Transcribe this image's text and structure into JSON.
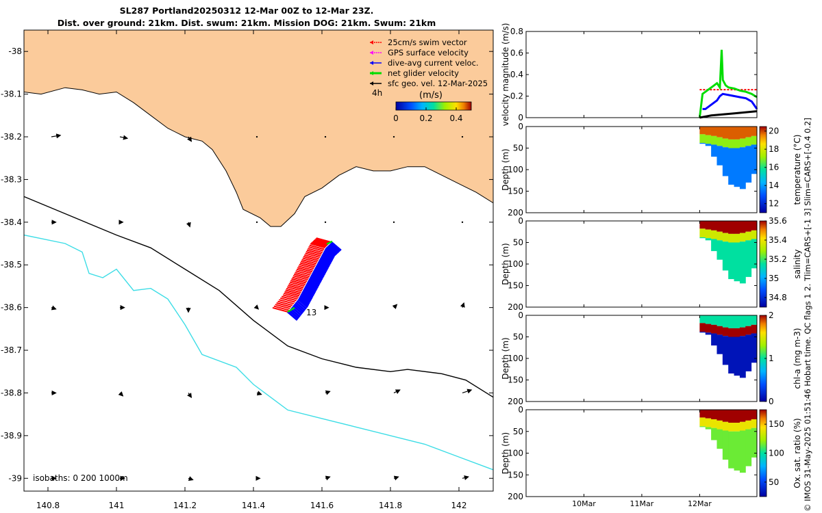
{
  "title_line1": "SL287 Portland20250312 12-Mar 00Z to 12-Mar 23Z.",
  "title_line2": "Dist. over ground: 21km. Dist. swum: 21km. Mission DOG: 21km. Swum: 21km",
  "side_note": "© IMOS 31-May-2025 01:51:46 Hobart time. QC flags 1  2. Tlim=CARS+[-1 3] Slim=CARS+[-0.4 0.2]",
  "colors": {
    "land": "#FBCB9B",
    "isobath_0": "#000000",
    "isobath_200": "#000000",
    "isobath_1000": "#3DDDE6",
    "swim": "#FF0000",
    "gps": "#FF00FF",
    "dive": "#0000FF",
    "net": "#00DD00",
    "geo": "#000000"
  },
  "chart_data": [
    {
      "type": "map",
      "xlim": [
        140.73,
        142.1
      ],
      "ylim": [
        -39.03,
        -37.95
      ],
      "xticks": [
        140.8,
        141,
        141.2,
        141.4,
        141.6,
        141.8,
        142
      ],
      "xtick_labels": [
        "140.8",
        "141",
        "141.2",
        "141.4",
        "141.6",
        "141.8",
        "142"
      ],
      "yticks": [
        -38,
        -38.1,
        -38.2,
        -38.3,
        -38.4,
        -38.5,
        -38.6,
        -38.7,
        -38.8,
        -38.9,
        -39
      ],
      "ytick_labels": [
        "-38",
        "-38.1",
        "-38.2",
        "-38.3",
        "-38.4",
        "-38.5",
        "-38.6",
        "-38.7",
        "-38.8",
        "-38.9",
        "-39"
      ],
      "legend": [
        {
          "label": "25cm/s swim vector",
          "key": "swim"
        },
        {
          "label": "GPS surface velocity",
          "key": "gps"
        },
        {
          "label": "dive-avg current veloc.",
          "key": "dive"
        },
        {
          "label": "net glider velocity",
          "key": "net"
        },
        {
          "label": "sfc geo. vel. 12-Mar-2025",
          "key": "geo"
        }
      ],
      "legend_extra": "4h",
      "colorbar_label": "(m/s)",
      "colorbar_ticks": [
        "0",
        "0.2",
        "0.4"
      ],
      "track_start_label": "13",
      "isobath_label": "isobaths: 0   200  1000m",
      "coastline": [
        [
          140.73,
          -38.095
        ],
        [
          140.78,
          -38.1
        ],
        [
          140.85,
          -38.085
        ],
        [
          140.9,
          -38.09
        ],
        [
          140.95,
          -38.1
        ],
        [
          141.0,
          -38.095
        ],
        [
          141.05,
          -38.12
        ],
        [
          141.1,
          -38.15
        ],
        [
          141.15,
          -38.18
        ],
        [
          141.2,
          -38.2
        ],
        [
          141.25,
          -38.21
        ],
        [
          141.28,
          -38.23
        ],
        [
          141.32,
          -38.28
        ],
        [
          141.35,
          -38.33
        ],
        [
          141.37,
          -38.37
        ],
        [
          141.42,
          -38.39
        ],
        [
          141.45,
          -38.41
        ],
        [
          141.48,
          -38.41
        ],
        [
          141.52,
          -38.38
        ],
        [
          141.55,
          -38.34
        ],
        [
          141.6,
          -38.32
        ],
        [
          141.65,
          -38.29
        ],
        [
          141.7,
          -38.27
        ],
        [
          141.75,
          -38.28
        ],
        [
          141.8,
          -38.28
        ],
        [
          141.85,
          -38.27
        ],
        [
          141.9,
          -38.27
        ],
        [
          141.95,
          -38.29
        ],
        [
          142.0,
          -38.31
        ],
        [
          142.05,
          -38.33
        ],
        [
          142.1,
          -38.355
        ]
      ],
      "isobath_200": [
        [
          140.73,
          -38.34
        ],
        [
          140.85,
          -38.38
        ],
        [
          141.0,
          -38.43
        ],
        [
          141.1,
          -38.46
        ],
        [
          141.2,
          -38.51
        ],
        [
          141.3,
          -38.56
        ],
        [
          141.4,
          -38.63
        ],
        [
          141.5,
          -38.69
        ],
        [
          141.6,
          -38.72
        ],
        [
          141.7,
          -38.74
        ],
        [
          141.8,
          -38.75
        ],
        [
          141.85,
          -38.745
        ],
        [
          141.95,
          -38.755
        ],
        [
          142.02,
          -38.77
        ],
        [
          142.1,
          -38.81
        ]
      ],
      "isobath_1000": [
        [
          140.73,
          -38.43
        ],
        [
          140.85,
          -38.45
        ],
        [
          140.9,
          -38.47
        ],
        [
          140.92,
          -38.52
        ],
        [
          140.96,
          -38.53
        ],
        [
          141.0,
          -38.51
        ],
        [
          141.05,
          -38.56
        ],
        [
          141.1,
          -38.555
        ],
        [
          141.15,
          -38.58
        ],
        [
          141.2,
          -38.64
        ],
        [
          141.25,
          -38.71
        ],
        [
          141.35,
          -38.74
        ],
        [
          141.4,
          -38.78
        ],
        [
          141.45,
          -38.81
        ],
        [
          141.5,
          -38.84
        ],
        [
          141.6,
          -38.86
        ],
        [
          141.7,
          -38.88
        ],
        [
          141.8,
          -38.9
        ],
        [
          141.9,
          -38.92
        ],
        [
          142.0,
          -38.95
        ],
        [
          142.1,
          -38.98
        ]
      ],
      "track": [
        [
          141.5,
          -38.61
        ],
        [
          141.53,
          -38.58
        ],
        [
          141.55,
          -38.55
        ],
        [
          141.57,
          -38.52
        ],
        [
          141.59,
          -38.49
        ],
        [
          141.61,
          -38.46
        ],
        [
          141.63,
          -38.445
        ]
      ],
      "geo_vectors": {
        "lons": [
          140.81,
          141.01,
          141.21,
          141.41,
          141.61,
          141.81,
          142.01
        ],
        "lats": [
          -38.2,
          -38.4,
          -38.6,
          -38.8,
          -39.0
        ],
        "u": [
          [
            0.06,
            0.05,
            0.02,
            0.0,
            0.0,
            0.0,
            0.0
          ],
          [
            0.03,
            0.02,
            0.01,
            0.0,
            0.0,
            0.0,
            0.0
          ],
          [
            0.03,
            0.03,
            0.0,
            0.01,
            0.02,
            0.02,
            0.01
          ],
          [
            0.03,
            0.02,
            0.02,
            0.03,
            0.03,
            0.04,
            0.06
          ],
          [
            0.03,
            0.03,
            0.03,
            0.02,
            0.03,
            0.03,
            0.04
          ]
        ],
        "v": [
          [
            0.01,
            -0.01,
            -0.03,
            0.0,
            0.0,
            0.0,
            0.0
          ],
          [
            0.0,
            0.0,
            -0.03,
            0.0,
            0.0,
            0.0,
            0.0
          ],
          [
            -0.01,
            0.0,
            -0.03,
            -0.01,
            0.0,
            0.02,
            0.03
          ],
          [
            0.0,
            -0.02,
            -0.03,
            -0.01,
            0.01,
            0.02,
            0.02
          ],
          [
            0.0,
            0.0,
            -0.01,
            0.0,
            0.01,
            0.01,
            0.01
          ]
        ]
      }
    },
    {
      "type": "line",
      "ylabel": "velocity magnitude (m/s)",
      "ylim": [
        0,
        0.8
      ],
      "yticks": [
        0,
        0.2,
        0.4,
        0.6,
        0.8
      ],
      "ytick_labels": [
        "0",
        "0.2",
        "0.4",
        "0.6",
        "0.8"
      ],
      "xlim": [
        9.0,
        12.99
      ],
      "xticks": [
        10,
        11,
        12
      ],
      "xtick_labels": [
        "10Mar",
        "11Mar",
        "12Mar"
      ],
      "series": [
        {
          "name": "swim",
          "color": "#FF0000",
          "dashed": true,
          "x": [
            12.0,
            12.99
          ],
          "y": [
            0.26,
            0.26
          ]
        },
        {
          "name": "net glider velocity",
          "color": "#00DD00",
          "x": [
            12.0,
            12.05,
            12.1,
            12.2,
            12.25,
            12.3,
            12.35,
            12.38,
            12.4,
            12.45,
            12.5,
            12.6,
            12.7,
            12.8,
            12.9,
            12.99
          ],
          "y": [
            0.0,
            0.22,
            0.24,
            0.28,
            0.3,
            0.32,
            0.28,
            0.63,
            0.35,
            0.3,
            0.28,
            0.27,
            0.25,
            0.24,
            0.22,
            0.19
          ]
        },
        {
          "name": "dive-avg current veloc.",
          "color": "#0000FF",
          "x": [
            12.05,
            12.1,
            12.2,
            12.3,
            12.35,
            12.4,
            12.5,
            12.6,
            12.7,
            12.8,
            12.9,
            12.99
          ],
          "y": [
            0.08,
            0.08,
            0.12,
            0.16,
            0.2,
            0.22,
            0.21,
            0.2,
            0.19,
            0.18,
            0.15,
            0.08
          ]
        },
        {
          "name": "sfc geo. vel.",
          "color": "#000000",
          "x": [
            12.0,
            12.2,
            12.4,
            12.6,
            12.8,
            12.99
          ],
          "y": [
            0.0,
            0.02,
            0.03,
            0.04,
            0.05,
            0.06
          ]
        }
      ]
    },
    {
      "type": "heatmap",
      "ylabel": "Depth (m)",
      "clabel": "temperature (°C)",
      "ylim": [
        200,
        0
      ],
      "yticks": [
        0,
        50,
        100,
        150,
        200
      ],
      "ytick_labels": [
        "0",
        "50",
        "100",
        "150",
        "200"
      ],
      "clim": [
        11,
        20.5
      ],
      "cticks": [
        "12",
        "14",
        "16",
        "18",
        "20"
      ],
      "cmap": "parula",
      "profiles": {
        "x": [
          12.0,
          12.99
        ],
        "depth_max": [
          40,
          45,
          70,
          90,
          115,
          135,
          140,
          145,
          130,
          110
        ],
        "top_value": 19.8,
        "mid_value": 17.0,
        "deep_value": 13.5,
        "mixed_layer_depth": [
          18,
          20,
          22,
          25,
          28,
          30,
          30,
          28,
          25,
          22
        ]
      }
    },
    {
      "type": "heatmap",
      "ylabel": "Depth (m)",
      "clabel": "salinity",
      "ylim": [
        200,
        0
      ],
      "yticks": [
        0,
        50,
        100,
        150,
        200
      ],
      "ytick_labels": [
        "0",
        "50",
        "100",
        "150",
        "200"
      ],
      "clim": [
        34.7,
        35.6
      ],
      "cticks": [
        "34.8",
        "35",
        "35.2",
        "35.4",
        "35.6"
      ],
      "cmap": "parula",
      "profiles": {
        "x": [
          12.0,
          12.99
        ],
        "depth_max": [
          40,
          45,
          70,
          90,
          115,
          135,
          140,
          145,
          130,
          110
        ],
        "top_value": 35.6,
        "mid_value": 35.35,
        "deep_value": 35.15,
        "mixed_layer_depth": [
          18,
          20,
          22,
          25,
          28,
          30,
          30,
          28,
          25,
          22
        ]
      }
    },
    {
      "type": "heatmap",
      "ylabel": "Depth (m)",
      "clabel": "chl-a (mg m-3)",
      "ylim": [
        200,
        0
      ],
      "yticks": [
        0,
        50,
        100,
        150,
        200
      ],
      "ytick_labels": [
        "0",
        "50",
        "100",
        "150",
        "200"
      ],
      "clim": [
        0,
        2
      ],
      "cticks": [
        "0",
        "1",
        "2"
      ],
      "cmap": "parula",
      "profiles": {
        "x": [
          12.0,
          12.99
        ],
        "depth_max": [
          40,
          45,
          70,
          90,
          115,
          135,
          140,
          145,
          130,
          110
        ],
        "top_value": 1.0,
        "mid_value": 2.0,
        "deep_value": 0.1,
        "mixed_layer_depth": [
          18,
          20,
          22,
          25,
          28,
          30,
          30,
          28,
          25,
          22
        ]
      }
    },
    {
      "type": "heatmap",
      "ylabel": "Depth (m)",
      "clabel": "Ox. sat. ratio (%)",
      "ylim": [
        200,
        0
      ],
      "yticks": [
        0,
        50,
        100,
        150,
        200
      ],
      "ytick_labels": [
        "0",
        "50",
        "100",
        "150",
        "200"
      ],
      "xticks": [
        10,
        11,
        12
      ],
      "xtick_labels": [
        "10Mar",
        "11Mar",
        "12Mar"
      ],
      "clim": [
        25,
        175
      ],
      "cticks": [
        "50",
        "100",
        "150"
      ],
      "cmap": "parula",
      "profiles": {
        "x": [
          12.0,
          12.99
        ],
        "depth_max": [
          40,
          45,
          70,
          90,
          115,
          135,
          140,
          145,
          130,
          110
        ],
        "top_value": 175,
        "mid_value": 140,
        "deep_value": 115,
        "mixed_layer_depth": [
          18,
          20,
          22,
          25,
          28,
          30,
          30,
          28,
          25,
          22
        ]
      }
    }
  ]
}
